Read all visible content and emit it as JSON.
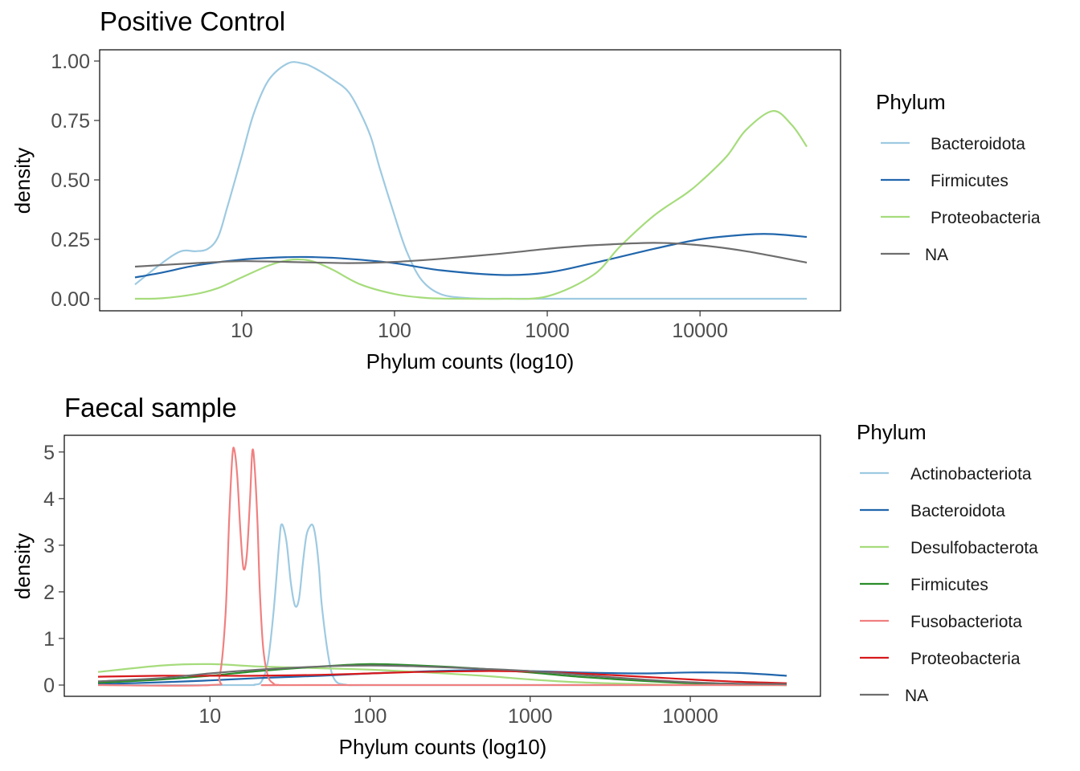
{
  "chart_data": [
    {
      "type": "line",
      "title": "Positive Control",
      "xlabel": "Phylum counts (log10)",
      "ylabel": "density",
      "x_scale": "log10",
      "xlim": [
        2,
        50000
      ],
      "ylim": [
        0,
        1
      ],
      "x_ticks": [
        "10",
        "100",
        "1000",
        "10000"
      ],
      "y_ticks": [
        "0.00",
        "0.25",
        "0.50",
        "0.75",
        "1.00"
      ],
      "legend_title": "Phylum",
      "legend_position": "right",
      "series": [
        {
          "name": "Bacteroidota",
          "color": "#9ecae1",
          "x": [
            2,
            3,
            4,
            5,
            6,
            7,
            8,
            10,
            12,
            15,
            20,
            25,
            30,
            40,
            50,
            60,
            70,
            80,
            100,
            120,
            150,
            200,
            300,
            500,
            1000,
            2000,
            5000,
            10000,
            20000,
            50000
          ],
          "y": [
            0.06,
            0.15,
            0.2,
            0.2,
            0.21,
            0.26,
            0.38,
            0.6,
            0.78,
            0.92,
            0.99,
            0.99,
            0.97,
            0.92,
            0.87,
            0.78,
            0.68,
            0.55,
            0.35,
            0.2,
            0.08,
            0.02,
            0.003,
            0,
            0,
            0,
            0,
            0,
            0,
            0
          ]
        },
        {
          "name": "Firmicutes",
          "color": "#2166ac",
          "x": [
            2,
            3,
            5,
            10,
            20,
            30,
            50,
            100,
            200,
            500,
            1000,
            2000,
            5000,
            10000,
            20000,
            30000,
            50000
          ],
          "y": [
            0.09,
            0.11,
            0.14,
            0.165,
            0.175,
            0.175,
            0.168,
            0.15,
            0.12,
            0.1,
            0.11,
            0.15,
            0.21,
            0.25,
            0.27,
            0.272,
            0.26
          ]
        },
        {
          "name": "Proteobacteria",
          "color": "#a6dc7c",
          "x": [
            2,
            3,
            5,
            7,
            10,
            15,
            20,
            25,
            30,
            40,
            60,
            100,
            150,
            200,
            300,
            500,
            1000,
            2000,
            3000,
            5000,
            8000,
            10000,
            15000,
            20000,
            30000,
            40000,
            50000
          ],
          "y": [
            0,
            0.002,
            0.02,
            0.045,
            0.09,
            0.14,
            0.162,
            0.165,
            0.155,
            0.12,
            0.06,
            0.02,
            0.005,
            0.001,
            0,
            0,
            0.01,
            0.1,
            0.22,
            0.35,
            0.44,
            0.49,
            0.6,
            0.71,
            0.79,
            0.73,
            0.64
          ]
        },
        {
          "name": "NA",
          "color": "#6e6e6e",
          "x": [
            2,
            5,
            10,
            20,
            50,
            100,
            200,
            500,
            1000,
            2000,
            5000,
            10000,
            20000,
            50000
          ],
          "y": [
            0.135,
            0.15,
            0.158,
            0.155,
            0.15,
            0.155,
            0.168,
            0.19,
            0.21,
            0.225,
            0.235,
            0.225,
            0.2,
            0.152
          ]
        }
      ]
    },
    {
      "type": "line",
      "title": "Faecal sample",
      "xlabel": "Phylum counts (log10)",
      "ylabel": "density",
      "x_scale": "log10",
      "xlim": [
        2,
        40000
      ],
      "ylim": [
        0,
        5.1
      ],
      "x_ticks": [
        "10",
        "100",
        "1000",
        "10000"
      ],
      "y_ticks": [
        "0",
        "1",
        "2",
        "3",
        "4",
        "5"
      ],
      "legend_title": "Phylum",
      "legend_position": "right",
      "series": [
        {
          "name": "Actinobacteriota",
          "color": "#9ecae1",
          "x": [
            2,
            15,
            19,
            21,
            23,
            25,
            27,
            28,
            30,
            32,
            34,
            36,
            38,
            40,
            42,
            44,
            46,
            48,
            50,
            55,
            60,
            70,
            100,
            1000,
            40000
          ],
          "y": [
            0,
            0,
            0.01,
            0.08,
            0.5,
            1.6,
            3.0,
            3.45,
            3.1,
            2.2,
            1.7,
            1.85,
            2.6,
            3.2,
            3.4,
            3.42,
            3.1,
            2.5,
            1.7,
            0.6,
            0.12,
            0.01,
            0,
            0,
            0
          ]
        },
        {
          "name": "Bacteroidota",
          "color": "#2166ac",
          "x": [
            2,
            5,
            10,
            20,
            50,
            100,
            200,
            500,
            1000,
            2000,
            5000,
            10000,
            20000,
            40000
          ],
          "y": [
            0.02,
            0.06,
            0.1,
            0.15,
            0.2,
            0.25,
            0.29,
            0.32,
            0.3,
            0.27,
            0.25,
            0.27,
            0.26,
            0.2
          ]
        },
        {
          "name": "Desulfobacterota",
          "color": "#a6dc7c",
          "x": [
            2,
            5,
            10,
            20,
            50,
            100,
            200,
            500,
            1000,
            2000,
            5000,
            10000,
            20000,
            40000
          ],
          "y": [
            0.28,
            0.42,
            0.45,
            0.4,
            0.36,
            0.33,
            0.28,
            0.2,
            0.12,
            0.06,
            0.02,
            0.005,
            0,
            0
          ]
        },
        {
          "name": "Firmicutes",
          "color": "#2a8c2a",
          "x": [
            2,
            5,
            10,
            20,
            50,
            100,
            200,
            500,
            1000,
            2000,
            5000,
            10000,
            20000,
            40000
          ],
          "y": [
            0.05,
            0.12,
            0.2,
            0.3,
            0.4,
            0.45,
            0.42,
            0.35,
            0.27,
            0.18,
            0.09,
            0.04,
            0.01,
            0
          ]
        },
        {
          "name": "Fusobacteriota",
          "color": "#f08080",
          "x": [
            2,
            10,
            11.5,
            12.5,
            13.2,
            13.8,
            14.2,
            14.8,
            15.5,
            16.2,
            17,
            17.8,
            18.4,
            19,
            19.8,
            20.5,
            21.5,
            23,
            25,
            27,
            40,
            40000
          ],
          "y": [
            0,
            0,
            0.2,
            1.5,
            3.6,
            4.9,
            5.05,
            4.5,
            3.3,
            2.5,
            2.8,
            4.0,
            5.02,
            4.7,
            3.5,
            2.0,
            0.8,
            0.2,
            0.03,
            0,
            0,
            0
          ]
        },
        {
          "name": "Proteobacteria",
          "color": "#d7191c",
          "x": [
            2,
            5,
            10,
            20,
            50,
            100,
            200,
            500,
            1000,
            2000,
            5000,
            10000,
            20000,
            40000
          ],
          "y": [
            0.18,
            0.2,
            0.2,
            0.2,
            0.22,
            0.25,
            0.28,
            0.3,
            0.29,
            0.25,
            0.18,
            0.12,
            0.07,
            0.04
          ]
        },
        {
          "name": "NA",
          "color": "#6e6e6e",
          "x": [
            2,
            5,
            10,
            20,
            50,
            100,
            200,
            500,
            1000,
            2000,
            5000,
            10000,
            20000,
            40000
          ],
          "y": [
            0.08,
            0.15,
            0.25,
            0.33,
            0.4,
            0.42,
            0.4,
            0.35,
            0.3,
            0.22,
            0.12,
            0.06,
            0.03,
            0.02
          ]
        }
      ]
    }
  ]
}
